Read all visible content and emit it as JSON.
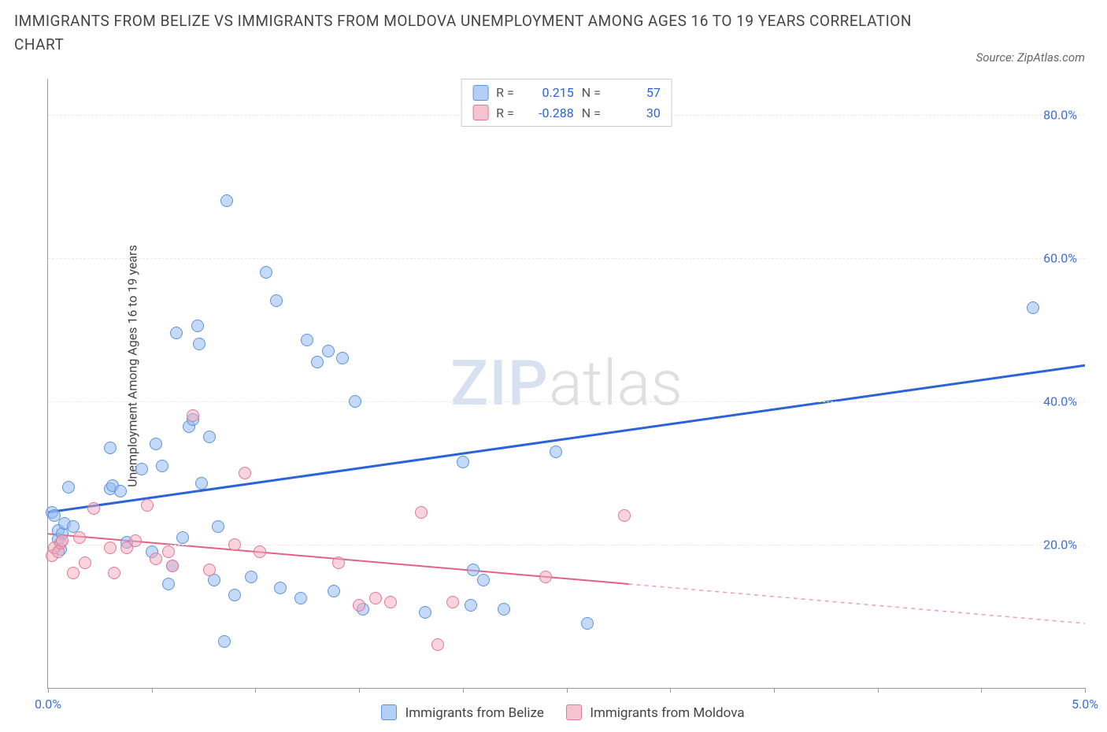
{
  "title": "IMMIGRANTS FROM BELIZE VS IMMIGRANTS FROM MOLDOVA UNEMPLOYMENT AMONG AGES 16 TO 19 YEARS CORRELATION CHART",
  "source": "Source: ZipAtlas.com",
  "watermark": {
    "part1": "ZIP",
    "part2": "atlas"
  },
  "chart": {
    "type": "scatter",
    "ylabel": "Unemployment Among Ages 16 to 19 years",
    "xlim": [
      0,
      5
    ],
    "ylim": [
      0,
      85
    ],
    "xtick_positions": [
      0,
      0.5,
      1.0,
      1.5,
      2.0,
      2.5,
      3.0,
      3.5,
      4.0,
      4.5,
      5.0
    ],
    "xtick_labels": {
      "0": "0.0%",
      "5": "5.0%"
    },
    "ytick_positions": [
      20,
      40,
      60,
      80
    ],
    "ytick_labels": [
      "20.0%",
      "40.0%",
      "60.0%",
      "80.0%"
    ],
    "grid_color": "#e8e8e8",
    "background_color": "#ffffff",
    "axis_color": "#999999",
    "marker_radius": 8,
    "series": [
      {
        "name": "Immigrants from Belize",
        "color_fill": "rgba(147,187,242,0.55)",
        "color_stroke": "#5d94db",
        "r": 0.215,
        "n": 57,
        "trend": {
          "x1": 0,
          "y1": 24.5,
          "x2": 5.0,
          "y2": 45.0,
          "solid_to_x": 5.0,
          "stroke": "#2b64d8",
          "width": 3
        },
        "points": [
          [
            0.02,
            24.5
          ],
          [
            0.03,
            24.0
          ],
          [
            0.05,
            22.0
          ],
          [
            0.05,
            20.8
          ],
          [
            0.06,
            19.3
          ],
          [
            0.07,
            21.5
          ],
          [
            0.08,
            23.0
          ],
          [
            0.1,
            28.0
          ],
          [
            0.12,
            22.5
          ],
          [
            0.3,
            33.5
          ],
          [
            0.3,
            27.8
          ],
          [
            0.31,
            28.2
          ],
          [
            0.35,
            27.5
          ],
          [
            0.38,
            20.3
          ],
          [
            0.45,
            30.5
          ],
          [
            0.5,
            19.0
          ],
          [
            0.52,
            34.0
          ],
          [
            0.55,
            31.0
          ],
          [
            0.58,
            14.5
          ],
          [
            0.6,
            17.0
          ],
          [
            0.62,
            49.5
          ],
          [
            0.65,
            21.0
          ],
          [
            0.68,
            36.5
          ],
          [
            0.7,
            37.5
          ],
          [
            0.72,
            50.5
          ],
          [
            0.73,
            48.0
          ],
          [
            0.74,
            28.5
          ],
          [
            0.78,
            35.0
          ],
          [
            0.8,
            15.0
          ],
          [
            0.82,
            22.5
          ],
          [
            0.85,
            6.5
          ],
          [
            0.86,
            68.0
          ],
          [
            0.9,
            13.0
          ],
          [
            0.98,
            15.5
          ],
          [
            1.05,
            58.0
          ],
          [
            1.1,
            54.0
          ],
          [
            1.12,
            14.0
          ],
          [
            1.22,
            12.5
          ],
          [
            1.25,
            48.5
          ],
          [
            1.3,
            45.5
          ],
          [
            1.35,
            47.0
          ],
          [
            1.38,
            13.5
          ],
          [
            1.42,
            46.0
          ],
          [
            1.48,
            40.0
          ],
          [
            1.52,
            11.0
          ],
          [
            1.82,
            10.5
          ],
          [
            2.0,
            31.5
          ],
          [
            2.04,
            11.5
          ],
          [
            2.05,
            16.5
          ],
          [
            2.1,
            15.0
          ],
          [
            2.2,
            11.0
          ],
          [
            2.45,
            33.0
          ],
          [
            2.6,
            9.0
          ],
          [
            4.75,
            53.0
          ]
        ]
      },
      {
        "name": "Immigrants from Moldova",
        "color_fill": "rgba(242,170,190,0.5)",
        "color_stroke": "#e37797",
        "r": -0.288,
        "n": 30,
        "trend": {
          "x1": 0,
          "y1": 21.5,
          "x2": 5.0,
          "y2": 9.0,
          "solid_to_x": 2.8,
          "stroke": "#e26187",
          "width": 2
        },
        "points": [
          [
            0.02,
            18.5
          ],
          [
            0.03,
            19.5
          ],
          [
            0.05,
            19.0
          ],
          [
            0.06,
            20.2
          ],
          [
            0.07,
            20.5
          ],
          [
            0.12,
            16.0
          ],
          [
            0.15,
            21.0
          ],
          [
            0.18,
            17.5
          ],
          [
            0.22,
            25.0
          ],
          [
            0.3,
            19.5
          ],
          [
            0.32,
            16.0
          ],
          [
            0.38,
            19.5
          ],
          [
            0.42,
            20.5
          ],
          [
            0.48,
            25.5
          ],
          [
            0.52,
            18.0
          ],
          [
            0.58,
            19.0
          ],
          [
            0.6,
            17.0
          ],
          [
            0.7,
            38.0
          ],
          [
            0.78,
            16.5
          ],
          [
            0.9,
            20.0
          ],
          [
            0.95,
            30.0
          ],
          [
            1.02,
            19.0
          ],
          [
            1.4,
            17.5
          ],
          [
            1.5,
            11.5
          ],
          [
            1.58,
            12.5
          ],
          [
            1.65,
            12.0
          ],
          [
            1.8,
            24.5
          ],
          [
            1.88,
            6.0
          ],
          [
            1.95,
            12.0
          ],
          [
            2.4,
            15.5
          ],
          [
            2.78,
            24.0
          ]
        ]
      }
    ],
    "legend_top": {
      "r_label": "R =",
      "n_label": "N ="
    },
    "legend_bottom": [
      {
        "color": "blue",
        "label": "Immigrants from Belize"
      },
      {
        "color": "pink",
        "label": "Immigrants from Moldova"
      }
    ]
  }
}
